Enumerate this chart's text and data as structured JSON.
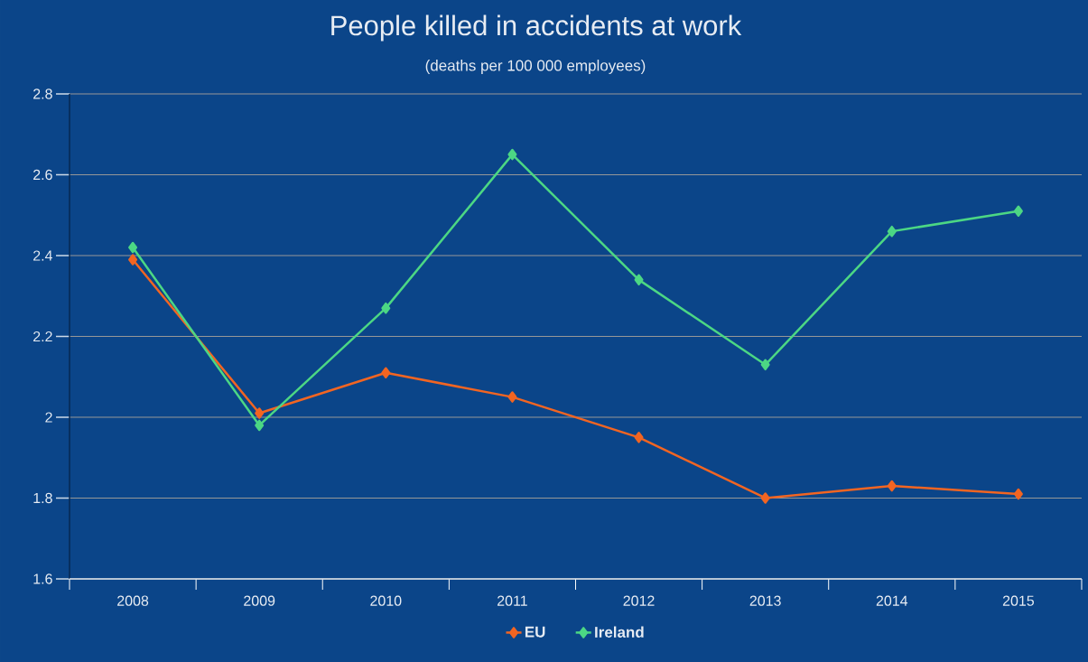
{
  "chart_data": {
    "type": "line",
    "title": "People killed in accidents at work",
    "subtitle": "(deaths per 100 000 employees)",
    "categories": [
      "2008",
      "2009",
      "2010",
      "2011",
      "2012",
      "2013",
      "2014",
      "2015"
    ],
    "series": [
      {
        "name": "EU",
        "color": "#f26522",
        "values": [
          2.39,
          2.01,
          2.11,
          2.05,
          1.95,
          1.8,
          1.83,
          1.81
        ]
      },
      {
        "name": "Ireland",
        "color": "#4cd784",
        "values": [
          2.42,
          1.98,
          2.27,
          2.65,
          2.34,
          2.13,
          2.46,
          2.51
        ]
      }
    ],
    "ylim": [
      1.6,
      2.8
    ],
    "yticks": [
      1.6,
      1.8,
      2,
      2.2,
      2.4,
      2.6,
      2.8
    ],
    "grid": "y",
    "legend": "bottom",
    "marker": "diamond",
    "line_style": "solid"
  }
}
